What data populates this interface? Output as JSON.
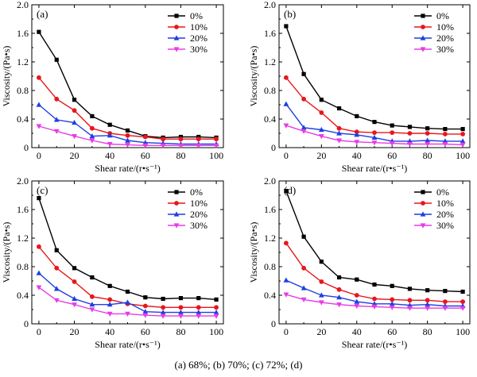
{
  "figure": {
    "caption": "(a) 68%; (b) 70%; (c) 72%; (d)"
  },
  "series_style": [
    {
      "name": "0%",
      "color": "#000000",
      "marker": "square"
    },
    {
      "name": "10%",
      "color": "#e8161b",
      "marker": "circle"
    },
    {
      "name": "20%",
      "color": "#1f3fe0",
      "marker": "triangle-up"
    },
    {
      "name": "30%",
      "color": "#e63ce6",
      "marker": "triangle-down"
    }
  ],
  "chart_data": [
    {
      "type": "line",
      "panel_label": "(a)",
      "xlabel": "Shear rate/(r•s⁻¹)",
      "ylabel": "Viscosity/(Pa•s)",
      "xlim": [
        -4,
        104
      ],
      "ylim": [
        0,
        2.0
      ],
      "xticks": [
        0,
        20,
        40,
        60,
        80,
        100
      ],
      "yticks": [
        0,
        0.4,
        0.8,
        1.2,
        1.6,
        2.0
      ],
      "ytick_labels": [
        "0",
        "0.4",
        "0.8",
        "1.2",
        "1.6",
        "2.0"
      ],
      "grid": false,
      "legend": "top-right",
      "x": [
        0,
        10,
        20,
        30,
        40,
        50,
        60,
        70,
        80,
        90,
        100
      ],
      "series": [
        {
          "name": "0%",
          "values": [
            1.62,
            1.23,
            0.67,
            0.44,
            0.32,
            0.24,
            0.16,
            0.14,
            0.15,
            0.15,
            0.14
          ]
        },
        {
          "name": "10%",
          "values": [
            0.98,
            0.68,
            0.52,
            0.27,
            0.2,
            0.17,
            0.15,
            0.12,
            0.12,
            0.12,
            0.12
          ]
        },
        {
          "name": "20%",
          "values": [
            0.6,
            0.39,
            0.35,
            0.16,
            0.17,
            0.1,
            0.07,
            0.06,
            0.05,
            0.05,
            0.05
          ]
        },
        {
          "name": "30%",
          "values": [
            0.3,
            0.23,
            0.16,
            0.1,
            0.05,
            0.04,
            0.03,
            0.03,
            0.03,
            0.03,
            0.03
          ]
        }
      ]
    },
    {
      "type": "line",
      "panel_label": "(b)",
      "xlabel": "Shear rate/(r•s⁻¹)",
      "ylabel": "Viscosity/(Pa•s)",
      "xlim": [
        -4,
        104
      ],
      "ylim": [
        0,
        2.0
      ],
      "xticks": [
        0,
        20,
        40,
        60,
        80,
        100
      ],
      "yticks": [
        0,
        0.4,
        0.8,
        1.2,
        1.6,
        2.0
      ],
      "ytick_labels": [
        "0",
        "0.4",
        "0.8",
        "1.2",
        "1.6",
        "2.0"
      ],
      "grid": false,
      "legend": "top-right",
      "x": [
        0,
        10,
        20,
        30,
        40,
        50,
        60,
        70,
        80,
        90,
        100
      ],
      "series": [
        {
          "name": "0%",
          "values": [
            1.7,
            1.03,
            0.67,
            0.55,
            0.44,
            0.36,
            0.31,
            0.29,
            0.27,
            0.26,
            0.26
          ]
        },
        {
          "name": "10%",
          "values": [
            0.98,
            0.68,
            0.49,
            0.27,
            0.22,
            0.21,
            0.21,
            0.2,
            0.2,
            0.19,
            0.19
          ]
        },
        {
          "name": "20%",
          "values": [
            0.61,
            0.28,
            0.25,
            0.2,
            0.18,
            0.14,
            0.09,
            0.09,
            0.1,
            0.09,
            0.09
          ]
        },
        {
          "name": "30%",
          "values": [
            0.31,
            0.23,
            0.16,
            0.1,
            0.08,
            0.07,
            0.06,
            0.05,
            0.05,
            0.05,
            0.04
          ]
        }
      ]
    },
    {
      "type": "line",
      "panel_label": "(c)",
      "xlabel": "Shear rate/(r•s⁻¹)",
      "ylabel": "Viscosity/(Pa•s)",
      "xlim": [
        -4,
        104
      ],
      "ylim": [
        0,
        2.0
      ],
      "xticks": [
        0,
        20,
        40,
        60,
        80,
        100
      ],
      "yticks": [
        0,
        0.4,
        0.8,
        1.2,
        1.6,
        2.0
      ],
      "ytick_labels": [
        "0",
        "0.4",
        "0.8",
        "1.2",
        "1.6",
        "2.0"
      ],
      "grid": false,
      "legend": "top-right",
      "x": [
        0,
        10,
        20,
        30,
        40,
        50,
        60,
        70,
        80,
        90,
        100
      ],
      "series": [
        {
          "name": "0%",
          "values": [
            1.76,
            1.03,
            0.78,
            0.65,
            0.53,
            0.45,
            0.37,
            0.35,
            0.36,
            0.36,
            0.34
          ]
        },
        {
          "name": "10%",
          "values": [
            1.08,
            0.78,
            0.59,
            0.38,
            0.34,
            0.28,
            0.25,
            0.23,
            0.23,
            0.23,
            0.23
          ]
        },
        {
          "name": "20%",
          "values": [
            0.71,
            0.49,
            0.35,
            0.27,
            0.27,
            0.3,
            0.17,
            0.16,
            0.16,
            0.16,
            0.16
          ]
        },
        {
          "name": "30%",
          "values": [
            0.51,
            0.33,
            0.27,
            0.2,
            0.14,
            0.14,
            0.12,
            0.11,
            0.11,
            0.11,
            0.11
          ]
        }
      ]
    },
    {
      "type": "line",
      "panel_label": "(d)",
      "xlabel": "Shear rate/(r•s⁻¹)",
      "ylabel": "Viscosity/(Pa•s)",
      "xlim": [
        -4,
        104
      ],
      "ylim": [
        0,
        2.0
      ],
      "xticks": [
        0,
        20,
        40,
        60,
        80,
        100
      ],
      "yticks": [
        0,
        0.4,
        0.8,
        1.2,
        1.6,
        2.0
      ],
      "ytick_labels": [
        "0",
        "0.4",
        "0.8",
        "1.2",
        "1.6",
        "2.0"
      ],
      "grid": false,
      "legend": "top-right",
      "x": [
        0,
        10,
        20,
        30,
        40,
        50,
        60,
        70,
        80,
        90,
        100
      ],
      "series": [
        {
          "name": "0%",
          "values": [
            1.86,
            1.22,
            0.87,
            0.65,
            0.62,
            0.55,
            0.53,
            0.49,
            0.47,
            0.46,
            0.45
          ]
        },
        {
          "name": "10%",
          "values": [
            1.13,
            0.78,
            0.59,
            0.48,
            0.4,
            0.35,
            0.34,
            0.33,
            0.33,
            0.31,
            0.31
          ]
        },
        {
          "name": "20%",
          "values": [
            0.61,
            0.5,
            0.4,
            0.37,
            0.31,
            0.28,
            0.28,
            0.26,
            0.27,
            0.25,
            0.25
          ]
        },
        {
          "name": "30%",
          "values": [
            0.41,
            0.34,
            0.3,
            0.27,
            0.25,
            0.24,
            0.23,
            0.22,
            0.22,
            0.22,
            0.22
          ]
        }
      ]
    }
  ]
}
